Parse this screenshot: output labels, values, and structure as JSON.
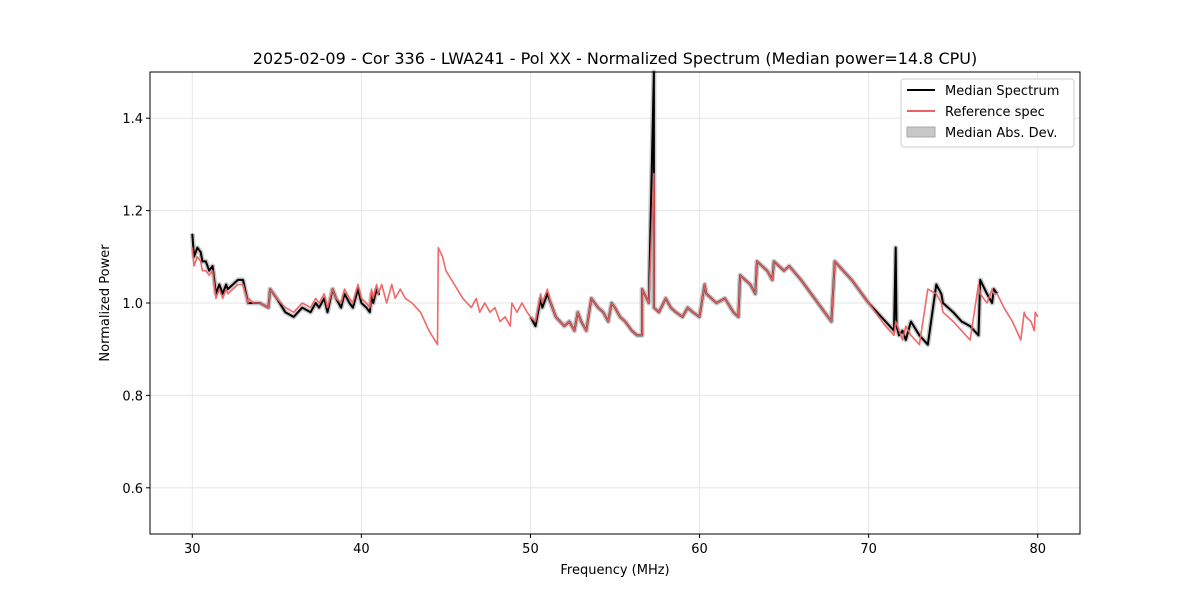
{
  "chart_data": {
    "type": "line",
    "title": "2025-02-09 - Cor 336 - LWA241 - Pol XX - Normalized Spectrum (Median power=14.8 CPU)",
    "xlabel": "Frequency (MHz)",
    "ylabel": "Normalized Power",
    "xlim": [
      27.5,
      82.5
    ],
    "ylim": [
      0.5,
      1.5
    ],
    "xticks": [
      30,
      40,
      50,
      60,
      70,
      80
    ],
    "yticks": [
      0.6,
      0.8,
      1.0,
      1.2,
      1.4
    ],
    "xtick_labels": [
      "30",
      "40",
      "50",
      "60",
      "70",
      "80"
    ],
    "ytick_labels": [
      "0.6",
      "0.8",
      "1.0",
      "1.2",
      "1.4"
    ],
    "grid": true,
    "legend_position": "top-right",
    "legend": [
      "Median Spectrum",
      "Reference spec",
      "Median Abs. Dev."
    ],
    "colors": {
      "median": "#000000",
      "reference": "#f06060",
      "mad": "#c8c8c8",
      "grid": "#e6e6e6"
    },
    "series": [
      {
        "name": "Median Spectrum",
        "x": [
          30.0,
          30.1,
          30.3,
          30.5,
          30.6,
          30.8,
          31.0,
          31.2,
          31.4,
          31.6,
          31.8,
          32.0,
          32.1,
          32.4,
          32.7,
          33.0,
          33.3,
          33.35,
          33.6,
          34.0,
          34.5,
          34.6,
          35.0,
          35.5,
          36.0,
          36.5,
          37.0,
          37.3,
          37.5,
          37.8,
          38.0,
          38.3,
          38.5,
          38.8,
          39.0,
          39.3,
          39.5,
          39.8,
          40.0,
          40.3,
          40.5,
          40.6,
          40.7,
          40.9,
          41.0,
          41.1,
          null,
          50.0,
          50.3,
          50.6,
          50.7,
          51.0,
          51.2,
          51.5,
          52.0,
          52.3,
          52.6,
          52.8,
          53.0,
          53.3,
          53.6,
          54.0,
          54.3,
          54.6,
          54.8,
          55.0,
          55.3,
          55.6,
          56.0,
          56.3,
          56.6,
          56.6,
          57.0,
          57.3,
          57.3,
          57.6,
          58.0,
          58.3,
          58.6,
          59.0,
          59.3,
          59.6,
          60.0,
          60.3,
          60.4,
          61.0,
          61.5,
          62.0,
          62.3,
          62.4,
          63.0,
          63.3,
          63.4,
          64.0,
          64.3,
          64.4,
          65.0,
          65.3,
          66.0,
          67.0,
          67.8,
          68.0,
          69.0,
          70.0,
          71.0,
          71.5,
          71.6,
          71.65,
          71.8,
          72.0,
          72.2,
          72.5,
          73.0,
          73.5,
          74.0,
          74.3,
          74.4,
          75.0,
          75.5,
          76.0,
          76.5,
          76.6,
          77.0,
          77.3,
          77.4,
          77.6
        ],
        "values": [
          1.15,
          1.1,
          1.12,
          1.11,
          1.09,
          1.09,
          1.07,
          1.08,
          1.02,
          1.04,
          1.02,
          1.04,
          1.03,
          1.04,
          1.05,
          1.05,
          1.0,
          1.0,
          1.0,
          1.0,
          0.99,
          1.03,
          1.01,
          0.98,
          0.97,
          0.99,
          0.98,
          1.0,
          0.99,
          1.01,
          0.98,
          1.03,
          1.01,
          0.99,
          1.02,
          1.0,
          0.99,
          1.03,
          1.0,
          0.99,
          0.98,
          1.02,
          1.0,
          1.03,
          1.02,
          1.02,
          null,
          0.97,
          0.95,
          1.01,
          0.99,
          1.02,
          1.0,
          0.97,
          0.95,
          0.96,
          0.94,
          0.98,
          0.96,
          0.94,
          1.01,
          0.99,
          0.98,
          0.96,
          1.0,
          0.99,
          0.97,
          0.96,
          0.94,
          0.93,
          0.93,
          1.03,
          1.0,
          1.5,
          0.99,
          0.98,
          1.01,
          0.99,
          0.98,
          0.97,
          0.99,
          0.98,
          0.97,
          1.04,
          1.02,
          1.0,
          1.01,
          0.98,
          0.97,
          1.06,
          1.04,
          1.02,
          1.09,
          1.07,
          1.05,
          1.09,
          1.07,
          1.08,
          1.05,
          1.0,
          0.96,
          1.09,
          1.05,
          1.0,
          0.96,
          0.94,
          1.12,
          0.95,
          0.93,
          0.94,
          0.92,
          0.96,
          0.93,
          0.91,
          1.04,
          1.02,
          1.0,
          0.98,
          0.96,
          0.95,
          0.93,
          1.05,
          1.02,
          1.0,
          1.03,
          1.02
        ]
      },
      {
        "name": "Reference spec",
        "x": [
          30.0,
          30.1,
          30.3,
          30.5,
          30.6,
          30.8,
          31.0,
          31.2,
          31.4,
          31.6,
          31.8,
          32.0,
          32.1,
          32.4,
          32.7,
          33.0,
          33.3,
          33.35,
          33.6,
          34.0,
          34.5,
          34.6,
          35.0,
          35.5,
          36.0,
          36.5,
          37.0,
          37.3,
          37.5,
          37.8,
          38.0,
          38.3,
          38.5,
          38.8,
          39.0,
          39.3,
          39.5,
          39.8,
          40.0,
          40.3,
          40.5,
          40.6,
          40.7,
          40.9,
          41.0,
          41.2,
          41.5,
          41.8,
          42.0,
          42.3,
          42.6,
          43.0,
          43.5,
          44.0,
          44.5,
          44.55,
          44.8,
          45.0,
          45.5,
          46.0,
          46.5,
          46.8,
          47.0,
          47.3,
          47.6,
          47.9,
          48.2,
          48.5,
          48.8,
          48.9,
          49.2,
          49.5,
          49.8,
          50.0,
          50.3,
          50.6,
          50.7,
          51.0,
          51.2,
          51.5,
          52.0,
          52.3,
          52.6,
          52.8,
          53.0,
          53.3,
          53.6,
          54.0,
          54.3,
          54.6,
          54.8,
          55.0,
          55.3,
          55.6,
          56.0,
          56.3,
          56.6,
          56.6,
          57.0,
          57.3,
          57.3,
          57.6,
          58.0,
          58.3,
          58.6,
          59.0,
          59.3,
          59.6,
          60.0,
          60.3,
          60.4,
          61.0,
          61.5,
          62.0,
          62.3,
          62.4,
          63.0,
          63.3,
          63.4,
          64.0,
          64.3,
          64.4,
          65.0,
          65.3,
          66.0,
          67.0,
          67.8,
          68.0,
          69.0,
          70.0,
          71.0,
          71.5,
          71.6,
          71.8,
          72.0,
          72.2,
          72.5,
          73.0,
          73.5,
          74.0,
          74.3,
          74.4,
          75.0,
          75.5,
          76.0,
          76.5,
          76.6,
          77.0,
          77.3,
          77.4,
          77.6,
          78.0,
          78.5,
          79.0,
          79.2,
          79.3,
          79.6,
          79.8,
          79.85,
          80.0
        ],
        "values": [
          1.12,
          1.08,
          1.1,
          1.09,
          1.07,
          1.07,
          1.06,
          1.07,
          1.01,
          1.03,
          1.01,
          1.03,
          1.02,
          1.03,
          1.04,
          1.04,
          1.0,
          1.01,
          1.0,
          1.0,
          0.99,
          1.03,
          1.01,
          0.99,
          0.98,
          1.0,
          0.99,
          1.01,
          1.0,
          1.02,
          0.99,
          1.03,
          1.01,
          1.0,
          1.03,
          1.01,
          1.0,
          1.04,
          1.01,
          1.0,
          0.99,
          1.03,
          1.01,
          1.04,
          1.02,
          1.04,
          1.0,
          1.04,
          1.01,
          1.03,
          1.01,
          1.0,
          0.98,
          0.94,
          0.91,
          1.12,
          1.1,
          1.07,
          1.04,
          1.01,
          0.99,
          1.01,
          0.98,
          1.0,
          0.98,
          0.99,
          0.96,
          0.97,
          0.95,
          1.0,
          0.98,
          1.0,
          0.98,
          0.97,
          0.96,
          1.02,
          1.0,
          1.03,
          1.0,
          0.97,
          0.95,
          0.96,
          0.94,
          0.98,
          0.96,
          0.94,
          1.01,
          0.99,
          0.98,
          0.96,
          1.0,
          0.99,
          0.97,
          0.96,
          0.94,
          0.93,
          0.93,
          1.03,
          1.0,
          1.28,
          0.99,
          0.98,
          1.01,
          0.99,
          0.98,
          0.97,
          0.99,
          0.98,
          0.97,
          1.04,
          1.02,
          1.0,
          1.01,
          0.98,
          0.97,
          1.06,
          1.04,
          1.02,
          1.09,
          1.07,
          1.05,
          1.09,
          1.07,
          1.08,
          1.05,
          1.0,
          0.96,
          1.09,
          1.05,
          1.0,
          0.95,
          0.93,
          0.96,
          0.94,
          0.92,
          0.95,
          0.93,
          0.91,
          1.03,
          1.02,
          1.0,
          0.98,
          0.96,
          0.94,
          0.92,
          1.04,
          1.02,
          1.0,
          1.03,
          1.02,
          1.02,
          0.99,
          0.96,
          0.92,
          0.98,
          0.97,
          0.96,
          0.94,
          0.98,
          0.97
        ]
      }
    ]
  }
}
